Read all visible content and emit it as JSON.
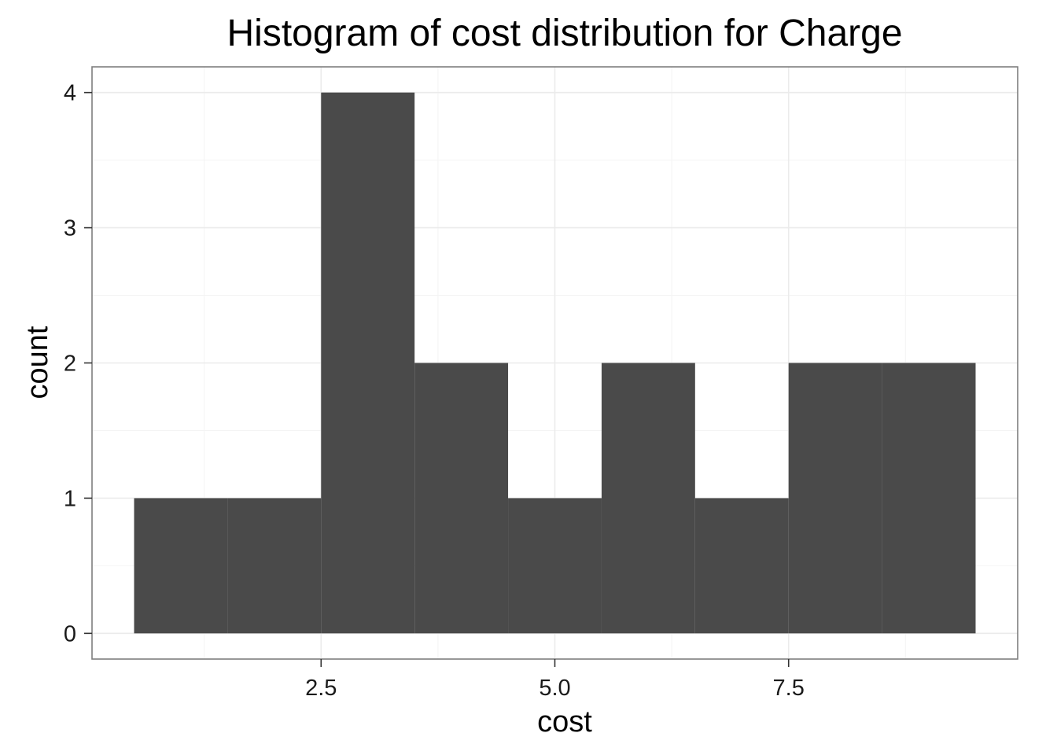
{
  "chart_data": {
    "type": "bar",
    "title": "Histogram of cost distribution for Charge",
    "xlabel": "cost",
    "ylabel": "count",
    "xlim": [
      0.05,
      9.95
    ],
    "ylim": [
      -0.19,
      4.19
    ],
    "x_ticks": [
      {
        "value": 2.5,
        "label": "2.5"
      },
      {
        "value": 5.0,
        "label": "5.0"
      },
      {
        "value": 7.5,
        "label": "7.5"
      }
    ],
    "y_ticks": [
      {
        "value": 0,
        "label": "0"
      },
      {
        "value": 1,
        "label": "1"
      },
      {
        "value": 2,
        "label": "2"
      },
      {
        "value": 3,
        "label": "3"
      },
      {
        "value": 4,
        "label": "4"
      }
    ],
    "x_minor_ticks": [
      1.25,
      3.75,
      6.25,
      8.75
    ],
    "y_minor_ticks": [
      0.5,
      1.5,
      2.5,
      3.5
    ],
    "bins": [
      {
        "x0": 0.5,
        "x1": 1.5,
        "count": 1
      },
      {
        "x0": 1.5,
        "x1": 2.5,
        "count": 1
      },
      {
        "x0": 2.5,
        "x1": 3.5,
        "count": 4
      },
      {
        "x0": 3.5,
        "x1": 4.5,
        "count": 2
      },
      {
        "x0": 4.5,
        "x1": 5.5,
        "count": 1
      },
      {
        "x0": 5.5,
        "x1": 6.5,
        "count": 2
      },
      {
        "x0": 6.5,
        "x1": 7.5,
        "count": 1
      },
      {
        "x0": 7.5,
        "x1": 8.5,
        "count": 2
      },
      {
        "x0": 8.5,
        "x1": 9.5,
        "count": 2
      }
    ],
    "grid": true,
    "bar_color": "#4a4a4a",
    "background": "#ffffff"
  }
}
